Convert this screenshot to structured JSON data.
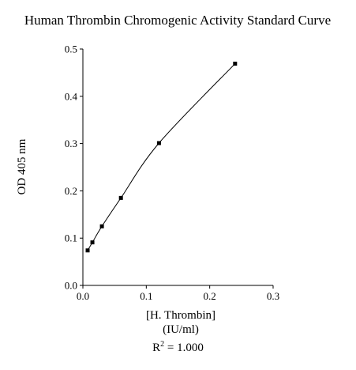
{
  "chart_data": {
    "type": "line",
    "title": "Human Thrombin Chromogenic Activity Standard Curve",
    "xlabel_line1": "[H. Thrombin]",
    "xlabel_line2": "(IU/ml)",
    "ylabel": "OD 405 nm",
    "xlim": [
      0,
      0.3
    ],
    "ylim": [
      0,
      0.5
    ],
    "xticks": [
      "0.0",
      "0.1",
      "0.2",
      "0.3"
    ],
    "yticks": [
      "0.0",
      "0.1",
      "0.2",
      "0.3",
      "0.4",
      "0.5"
    ],
    "x": [
      0.0075,
      0.015,
      0.03,
      0.06,
      0.12,
      0.24
    ],
    "y": [
      0.074,
      0.091,
      0.125,
      0.185,
      0.301,
      0.469
    ],
    "grid": false,
    "marker": "square",
    "curve": "smooth-fit",
    "r2": {
      "prefix": "R",
      "exponent": "2",
      "value": " = 1.000"
    }
  }
}
